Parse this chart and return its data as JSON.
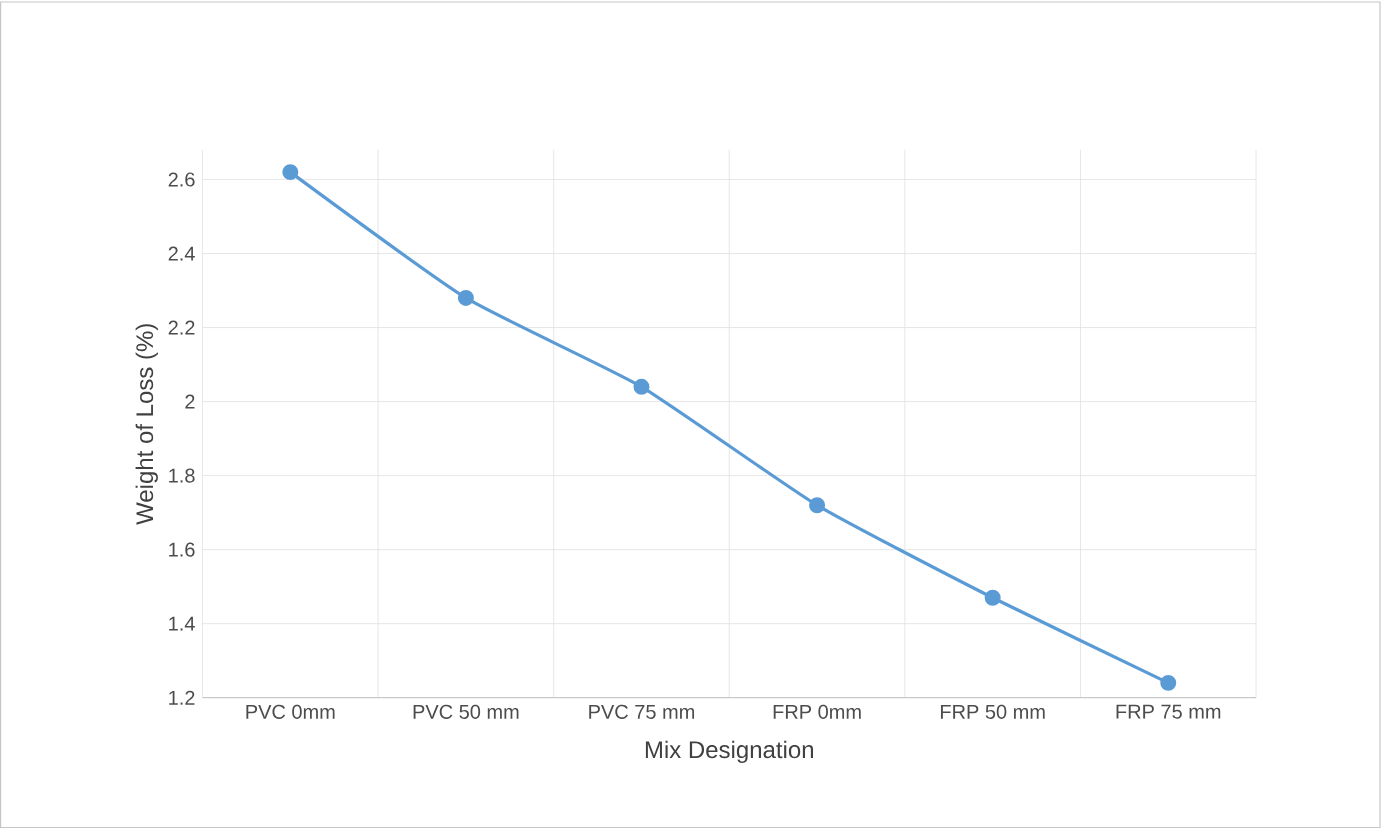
{
  "chart_data": {
    "type": "line",
    "xlabel": "Mix Designation",
    "ylabel": "Weight of Loss (%)",
    "categories": [
      "PVC  0mm",
      "PVC 50 mm",
      "PVC 75 mm",
      "FRP 0mm",
      "FRP 50 mm",
      "FRP 75 mm"
    ],
    "series": [
      {
        "color": "#5b9bd5",
        "values": [
          2.62,
          2.28,
          2.04,
          1.72,
          1.47,
          1.24
        ]
      }
    ],
    "ylim": [
      1.2,
      2.68
    ],
    "yticks": [
      1.2,
      1.4,
      1.6,
      1.8,
      2,
      2.2,
      2.4,
      2.6
    ],
    "grid": true,
    "marker": "circle",
    "line_style": "solid"
  }
}
